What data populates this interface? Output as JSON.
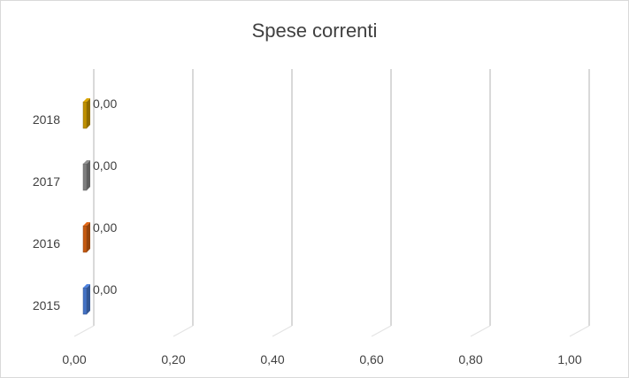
{
  "chart_data": {
    "type": "bar",
    "orientation": "horizontal",
    "three_d": true,
    "title": "Spese correnti",
    "categories": [
      "2015",
      "2016",
      "2017",
      "2018"
    ],
    "values": [
      0.0,
      0.0,
      0.0,
      0.0
    ],
    "data_labels": [
      "0,00",
      "0,00",
      "0,00",
      "0,00"
    ],
    "bar_colors": [
      "#4472c4",
      "#c55a11",
      "#7f7f7f",
      "#bf9000"
    ],
    "x_ticks": [
      0.0,
      0.2,
      0.4,
      0.6,
      0.8,
      1.0
    ],
    "x_tick_labels": [
      "0,00",
      "0,20",
      "0,40",
      "0,60",
      "0,80",
      "1,00"
    ],
    "xlim": [
      0,
      1
    ],
    "grid": true,
    "legend": "none"
  }
}
